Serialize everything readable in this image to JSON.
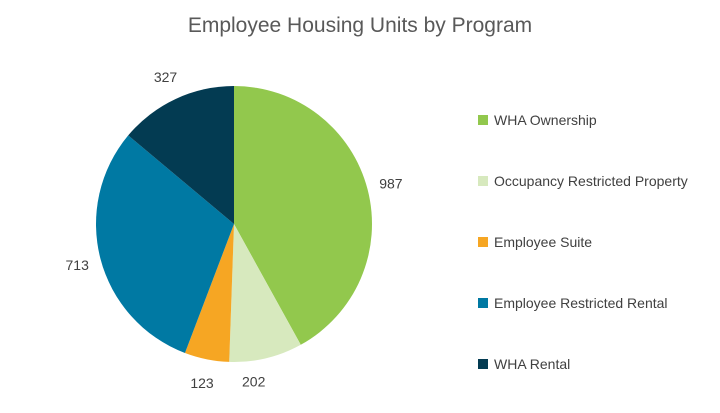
{
  "chart_data": {
    "type": "pie",
    "title": "Employee Housing Units by Program",
    "legend_position": "right",
    "categories": [
      "WHA Ownership",
      "Occupancy Restricted Property",
      "Employee Suite",
      "Employee Restricted Rental",
      "WHA Rental"
    ],
    "values": [
      987,
      202,
      123,
      713,
      327
    ],
    "colors": [
      "#92C84D",
      "#D7E9BE",
      "#F6A623",
      "#0079A3",
      "#033B52"
    ]
  }
}
